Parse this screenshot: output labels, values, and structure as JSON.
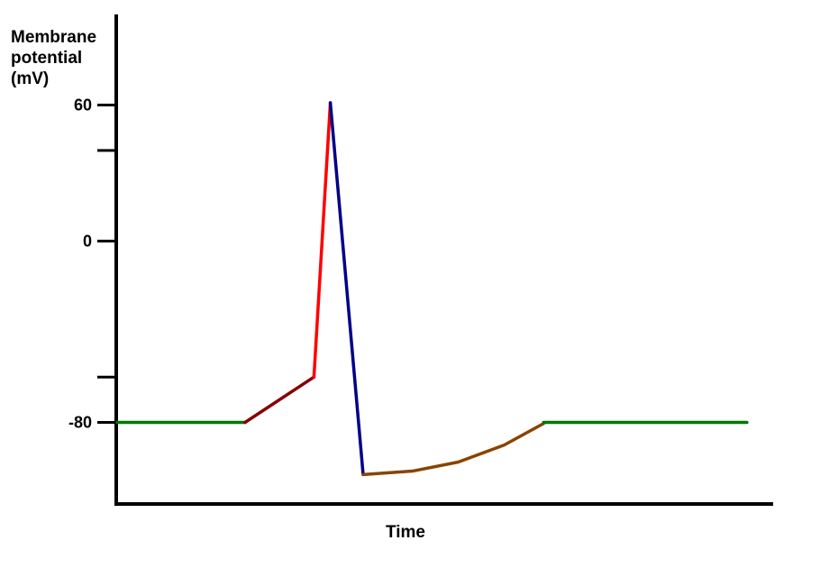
{
  "chart_data": {
    "type": "line",
    "ylabel_lines": [
      "Membrane",
      "potential",
      "(mV)"
    ],
    "xlabel": "Time",
    "grid": false,
    "legend": "none",
    "y_ticks": [
      60,
      40,
      0,
      -60,
      -80
    ],
    "y_tick_labels": [
      "60",
      "",
      "0",
      "",
      "-80"
    ],
    "ylim": [
      -116,
      100
    ],
    "xlim": [
      0,
      100
    ],
    "series": [
      {
        "color": "#007700",
        "points": [
          [
            0,
            -80
          ],
          [
            19.5,
            -80
          ]
        ]
      },
      {
        "color": "#880000",
        "points": [
          [
            19.5,
            -80
          ],
          [
            30,
            -60
          ]
        ]
      },
      {
        "color": "#ff0000",
        "points": [
          [
            30,
            -60
          ],
          [
            32.5,
            61
          ]
        ]
      },
      {
        "color": "#000088",
        "points": [
          [
            32.5,
            61
          ],
          [
            37.5,
            -103
          ]
        ]
      },
      {
        "color": "#884400",
        "points": [
          [
            37.5,
            -103
          ],
          [
            45,
            -101.5
          ],
          [
            52,
            -97.5
          ],
          [
            59,
            -90
          ],
          [
            65,
            -80.5
          ]
        ]
      },
      {
        "color": "#007700",
        "points": [
          [
            65,
            -80
          ],
          [
            96,
            -80
          ]
        ]
      }
    ]
  }
}
